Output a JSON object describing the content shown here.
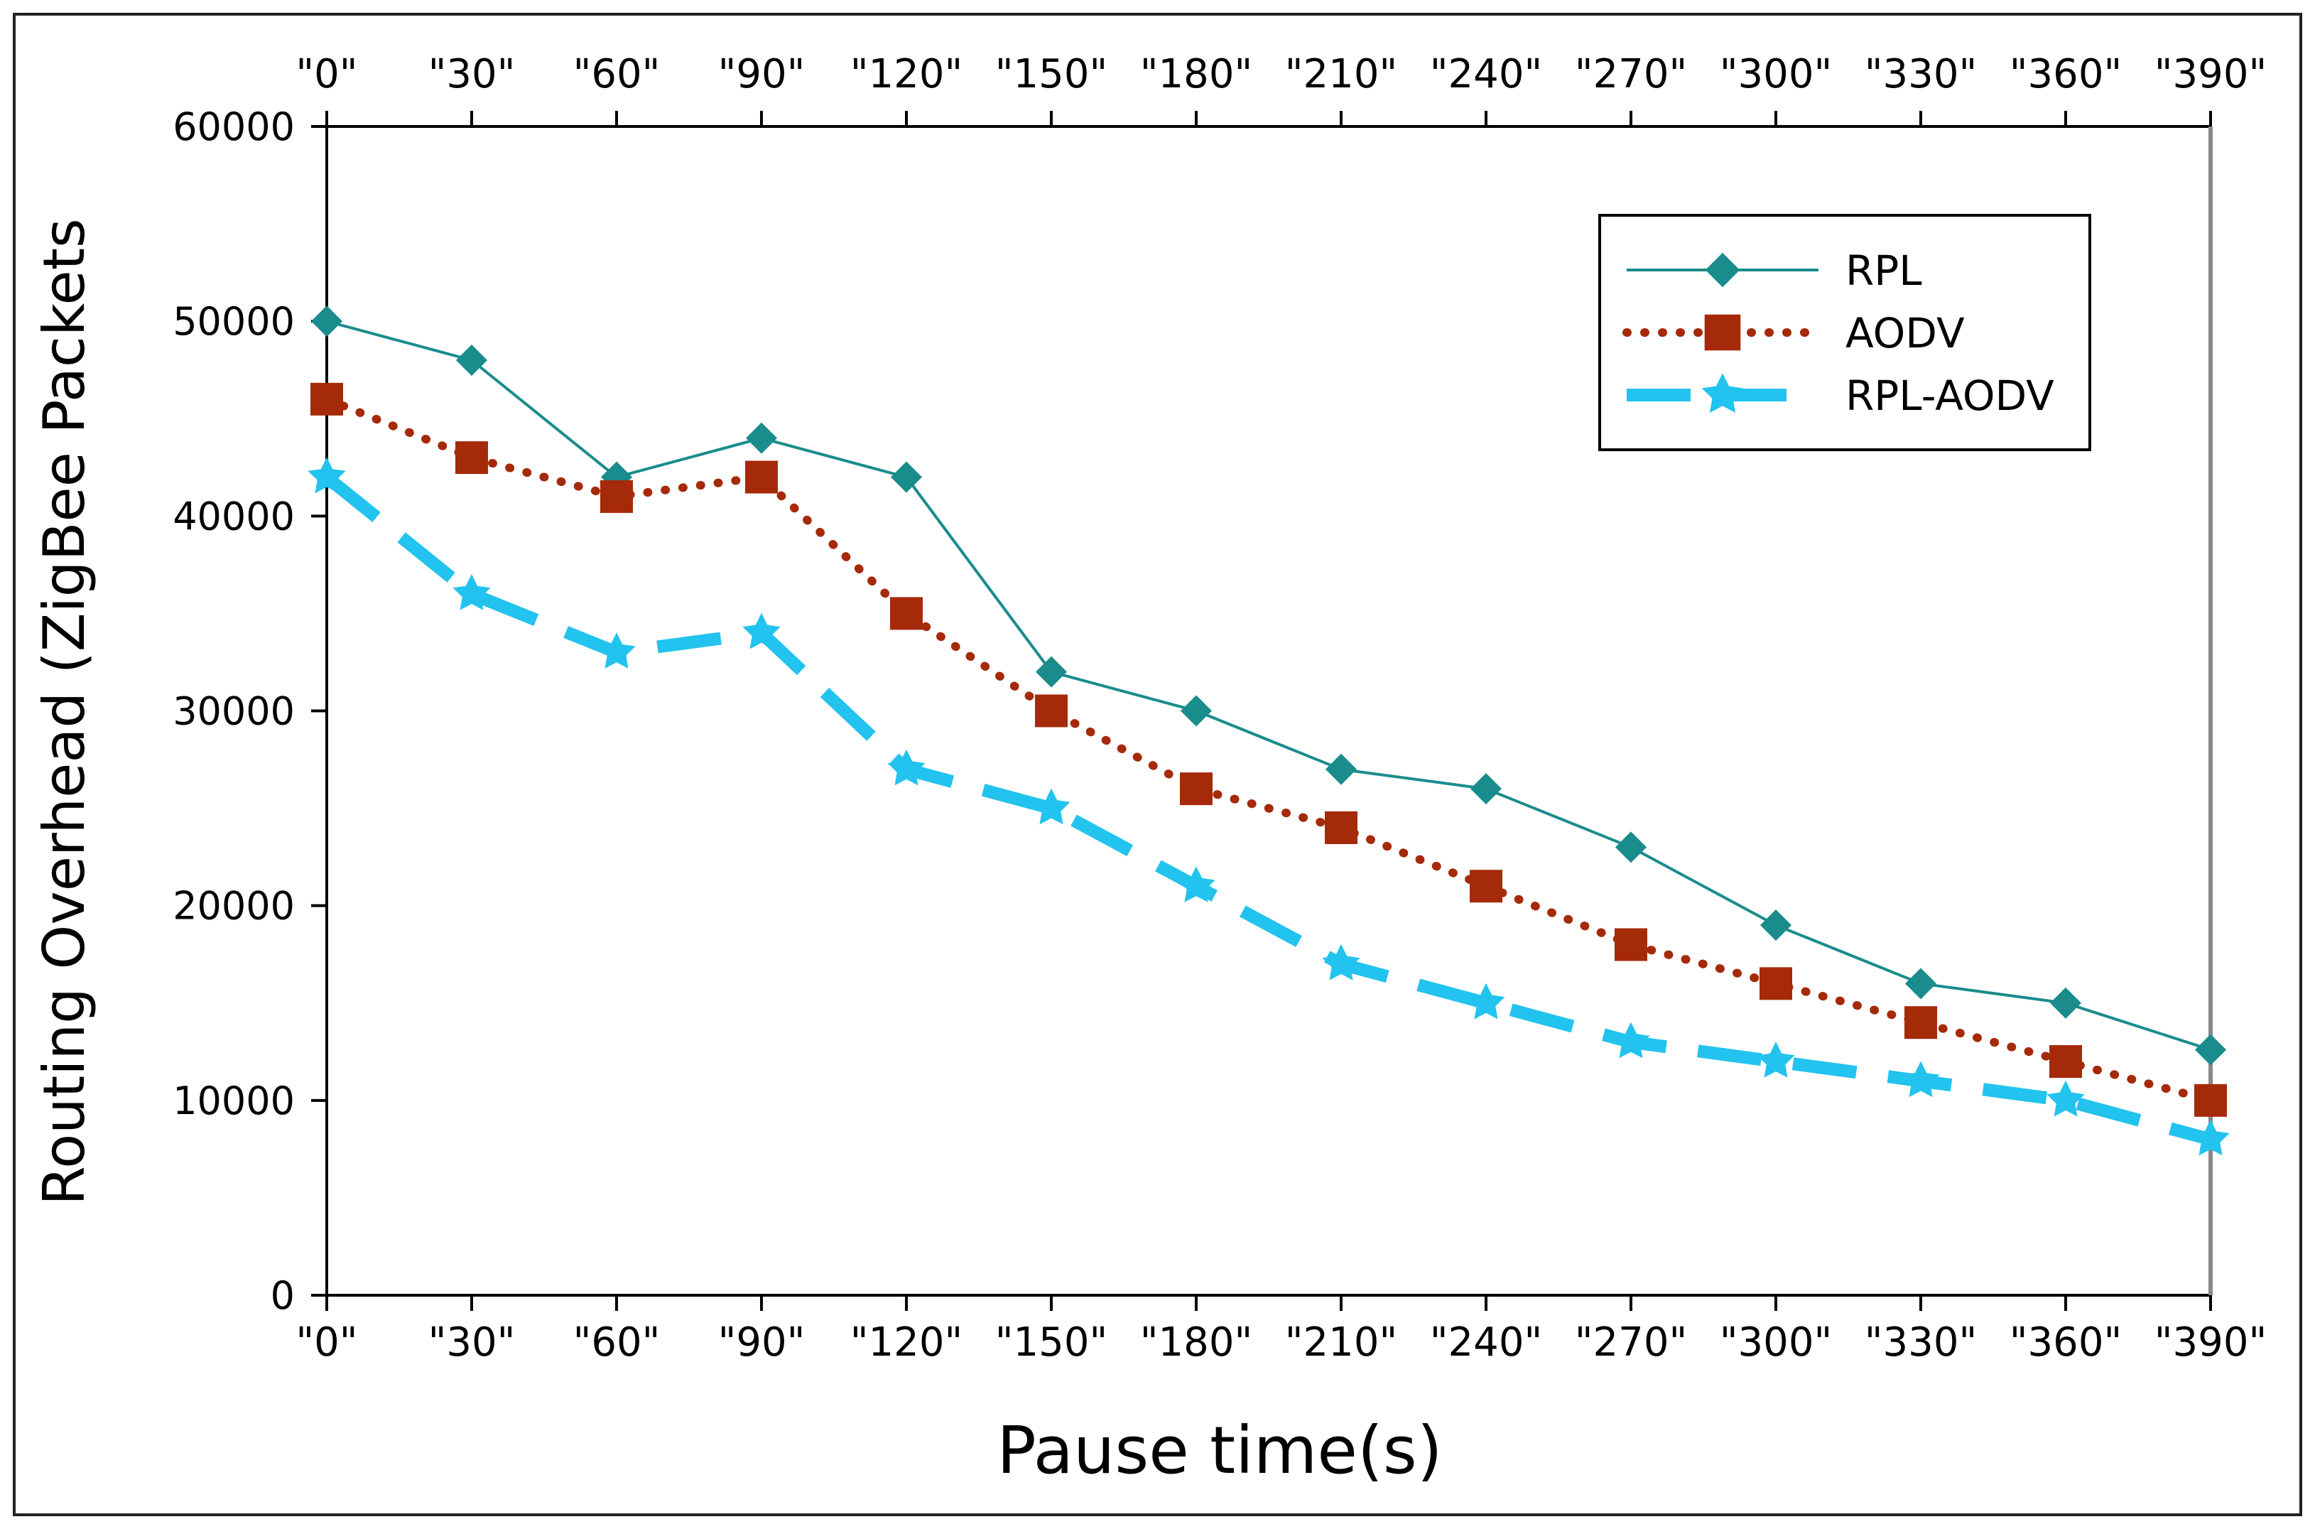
{
  "chart_data": {
    "type": "line",
    "title": "",
    "xlabel": "Pause time(s)",
    "ylabel": "Routing Overhead (ZigBee Packets",
    "categories": [
      "\"0\"",
      "\"30\"",
      "\"60\"",
      "\"90\"",
      "\"120\"",
      "\"150\"",
      "\"180\"",
      "\"210\"",
      "\"240\"",
      "\"270\"",
      "\"300\"",
      "\"330\"",
      "\"360\"",
      "\"390\""
    ],
    "x": [
      0,
      30,
      60,
      90,
      120,
      150,
      180,
      210,
      240,
      270,
      300,
      330,
      360,
      390
    ],
    "ylim": [
      0,
      60000
    ],
    "yticks": [
      "0",
      "10000",
      "20000",
      "30000",
      "40000",
      "50000",
      "60000"
    ],
    "ytick_values": [
      0,
      10000,
      20000,
      30000,
      40000,
      50000,
      60000
    ],
    "grid": false,
    "legend_position": "top-right",
    "series": [
      {
        "name": "RPL",
        "color": "#1a8c8c",
        "marker": "diamond",
        "line_style": "solid",
        "values": [
          50000,
          48000,
          42000,
          44000,
          42000,
          32000,
          30000,
          27000,
          26000,
          23000,
          19000,
          16000,
          15000,
          12600
        ]
      },
      {
        "name": "AODV",
        "color": "#a52a0a",
        "marker": "square",
        "line_style": "dotted",
        "values": [
          46000,
          43000,
          41000,
          42000,
          35000,
          30000,
          26000,
          24000,
          21000,
          18000,
          16000,
          14000,
          12000,
          10000
        ]
      },
      {
        "name": "RPL-AODV",
        "color": "#22c3ee",
        "marker": "triangle",
        "line_style": "dashed",
        "values": [
          42000,
          36000,
          33000,
          34000,
          27000,
          25000,
          21000,
          17000,
          15000,
          13000,
          12000,
          11000,
          10000,
          8000
        ]
      }
    ]
  }
}
